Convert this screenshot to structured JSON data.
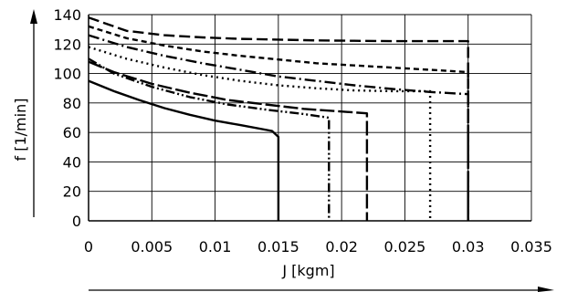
{
  "chart_data": {
    "type": "line",
    "title": "",
    "xlabel": "J [kgm]",
    "ylabel": "f [1/min]",
    "xlim": [
      0,
      0.035
    ],
    "ylim": [
      0,
      140
    ],
    "x_ticks": [
      0,
      0.005,
      0.01,
      0.015,
      0.02,
      0.025,
      0.03,
      0.035
    ],
    "x_tick_labels": [
      "0",
      "0.005",
      "0.01",
      "0.015",
      "0.02",
      "0.025",
      "0.03",
      "0.035"
    ],
    "y_ticks": [
      0,
      20,
      40,
      60,
      80,
      100,
      120,
      140
    ],
    "y_tick_labels": [
      "0",
      "20",
      "40",
      "60",
      "80",
      "100",
      "120",
      "140"
    ],
    "grid": true,
    "series": [
      {
        "style": "solid",
        "color": "#000000",
        "x": [
          0,
          0.002,
          0.004,
          0.006,
          0.008,
          0.01,
          0.012,
          0.0145,
          0.015,
          0.015
        ],
        "y": [
          95,
          88,
          82,
          76.5,
          72,
          68,
          65,
          61,
          57,
          0
        ]
      },
      {
        "style": "dash-dot-dot",
        "color": "#000000",
        "x": [
          0,
          0.002,
          0.005,
          0.008,
          0.011,
          0.014,
          0.017,
          0.019,
          0.019
        ],
        "y": [
          110,
          100,
          91,
          84,
          79,
          75.5,
          72.5,
          70,
          0
        ]
      },
      {
        "style": "long-dash",
        "color": "#000000",
        "x": [
          0,
          0.002,
          0.005,
          0.008,
          0.011,
          0.014,
          0.017,
          0.022,
          0.022
        ],
        "y": [
          108,
          101,
          93,
          87,
          82,
          79,
          76,
          73,
          0
        ]
      },
      {
        "style": "dotted",
        "color": "#000000",
        "x": [
          0,
          0.003,
          0.006,
          0.009,
          0.012,
          0.015,
          0.018,
          0.021,
          0.024,
          0.027,
          0.027
        ],
        "y": [
          118,
          110,
          104,
          99,
          95,
          92,
          90,
          88.5,
          88,
          88,
          0
        ]
      },
      {
        "style": "dash-dot",
        "color": "#000000",
        "x": [
          0,
          0.003,
          0.006,
          0.009,
          0.012,
          0.015,
          0.018,
          0.021,
          0.024,
          0.027,
          0.03,
          0.03
        ],
        "y": [
          126,
          118,
          112,
          107,
          102.5,
          98,
          95,
          92,
          89.5,
          87.5,
          86,
          0
        ]
      },
      {
        "style": "short-dash",
        "color": "#000000",
        "x": [
          0,
          0.003,
          0.006,
          0.009,
          0.012,
          0.015,
          0.018,
          0.021,
          0.024,
          0.027,
          0.03,
          0.03
        ],
        "y": [
          132,
          124,
          119,
          115,
          112,
          109.5,
          107,
          105.5,
          104,
          102.5,
          101,
          0
        ]
      },
      {
        "style": "dashed",
        "color": "#000000",
        "x": [
          0,
          0.003,
          0.006,
          0.009,
          0.012,
          0.015,
          0.018,
          0.021,
          0.024,
          0.027,
          0.03,
          0.03
        ],
        "y": [
          138,
          129,
          126,
          124.5,
          123.5,
          123,
          122.5,
          122.2,
          122,
          122,
          122,
          0
        ]
      }
    ]
  }
}
